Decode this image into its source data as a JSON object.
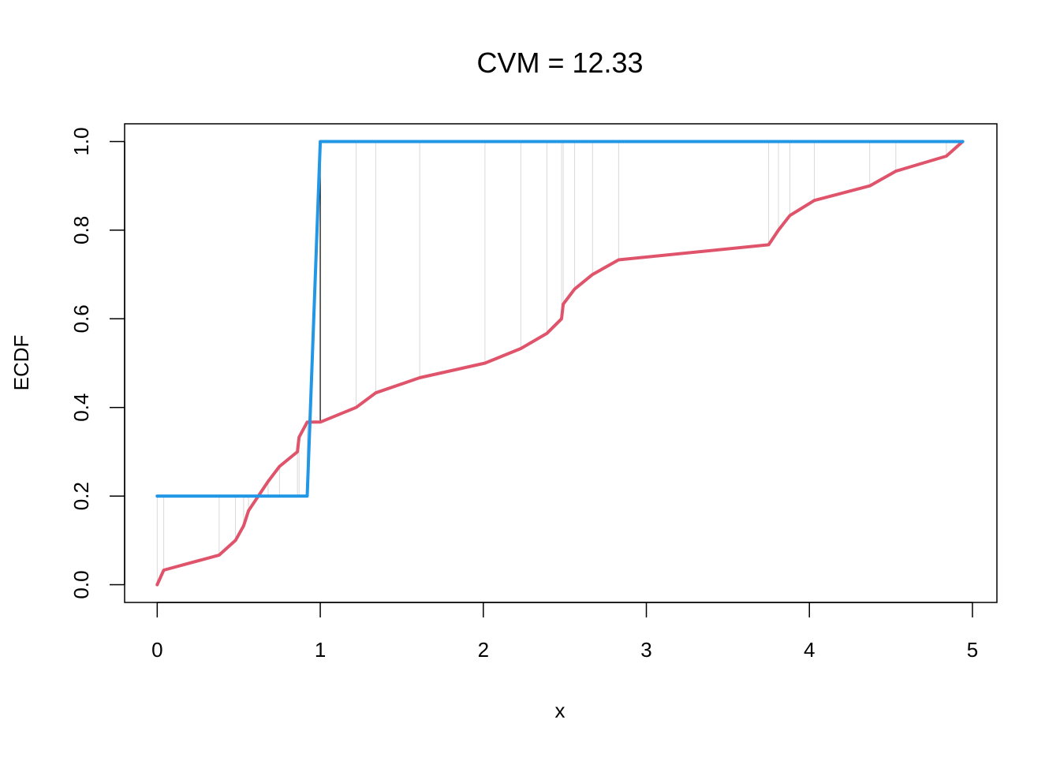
{
  "chart_data": {
    "type": "line",
    "title": "CVM = 12.33",
    "xlabel": "x",
    "ylabel": "ECDF",
    "xlim": [
      -0.2,
      5.15
    ],
    "ylim": [
      -0.04,
      1.04
    ],
    "x_ticks": [
      0,
      1,
      2,
      3,
      4,
      5
    ],
    "x_tick_labels": [
      "0",
      "1",
      "2",
      "3",
      "4",
      "5"
    ],
    "y_ticks": [
      0.0,
      0.2,
      0.4,
      0.6,
      0.8,
      1.0
    ],
    "y_tick_labels": [
      "0.0",
      "0.2",
      "0.4",
      "0.6",
      "0.8",
      "1.0"
    ],
    "grid": false,
    "legend": "none",
    "colors": {
      "sample_ecdf": "#DF536B",
      "reference_ecdf": "#2297E6",
      "difference_lines": "#d9d9d9",
      "max_difference_line": "#000000"
    },
    "series": [
      {
        "x": [
          0.0,
          0.04,
          0.38,
          0.48,
          0.53,
          0.56,
          0.68,
          0.75,
          0.86,
          0.87,
          0.92,
          1.0,
          1.22,
          1.34,
          1.61,
          2.01,
          2.23,
          2.39,
          2.48,
          2.49,
          2.56,
          2.67,
          2.83,
          3.75,
          3.81,
          3.88,
          4.03,
          4.37,
          4.53,
          4.84,
          4.94
        ],
        "y": [
          0.0,
          0.033,
          0.067,
          0.1,
          0.133,
          0.167,
          0.233,
          0.267,
          0.3,
          0.333,
          0.367,
          0.367,
          0.4,
          0.433,
          0.467,
          0.5,
          0.533,
          0.567,
          0.6,
          0.633,
          0.667,
          0.7,
          0.733,
          0.767,
          0.8,
          0.833,
          0.867,
          0.9,
          0.933,
          0.967,
          1.0
        ]
      },
      {
        "x": [
          0.0,
          0.92,
          1.0,
          4.94
        ],
        "y": [
          0.2,
          0.2,
          1.0,
          1.0
        ]
      }
    ]
  }
}
